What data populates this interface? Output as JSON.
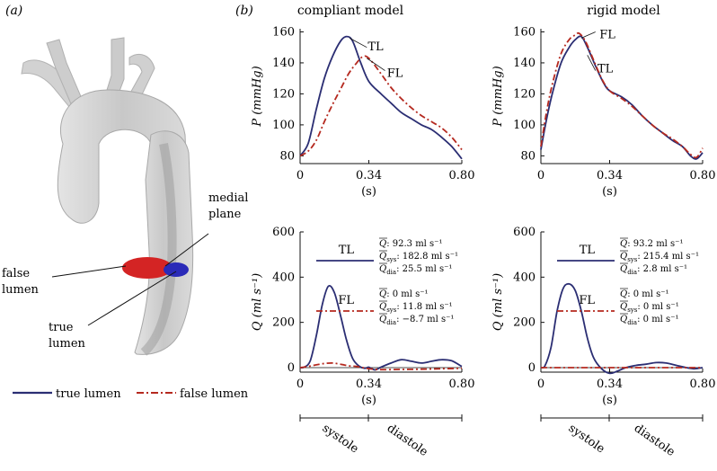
{
  "panels": {
    "a": "(a)",
    "b": "(b)"
  },
  "anatomy": {
    "labels": {
      "medial_plane": [
        "medial",
        "plane"
      ],
      "false_lumen": [
        "false",
        "lumen"
      ],
      "true_lumen": [
        "true",
        "lumen"
      ]
    },
    "colors": {
      "vessel": "#cfcfcf",
      "false_lumen": "#d42424",
      "true_lumen": "#2a2ab8"
    }
  },
  "legend": {
    "true_lumen": "true lumen",
    "false_lumen": "false lumen",
    "colors": {
      "true": "#2b2e73",
      "false": "#b5291f"
    }
  },
  "phase_labels": {
    "systole": "systole",
    "diastole": "diastole"
  },
  "chart_data": [
    {
      "type": "line",
      "title": "compliant model",
      "ylabel": "P (mmHg)",
      "xlabel": "(s)",
      "xlim": [
        0,
        0.8
      ],
      "ylim": [
        75,
        162
      ],
      "xticks": [
        "0",
        "0.34",
        "0.80"
      ],
      "yticks": [
        80,
        100,
        120,
        140,
        160
      ],
      "series": [
        {
          "name": "TL",
          "x": [
            0,
            0.04,
            0.08,
            0.12,
            0.16,
            0.2,
            0.23,
            0.26,
            0.3,
            0.34,
            0.4,
            0.45,
            0.5,
            0.55,
            0.6,
            0.65,
            0.7,
            0.75,
            0.8
          ],
          "values": [
            80,
            88,
            110,
            130,
            144,
            154,
            157,
            154,
            140,
            128,
            120,
            114,
            108,
            104,
            100,
            97,
            92,
            86,
            78
          ]
        },
        {
          "name": "FL",
          "x": [
            0,
            0.04,
            0.08,
            0.12,
            0.16,
            0.2,
            0.24,
            0.28,
            0.31,
            0.34,
            0.4,
            0.45,
            0.5,
            0.55,
            0.6,
            0.65,
            0.7,
            0.75,
            0.8
          ],
          "values": [
            80,
            83,
            90,
            102,
            113,
            123,
            133,
            140,
            144,
            143,
            133,
            124,
            117,
            111,
            106,
            102,
            98,
            92,
            84
          ]
        }
      ],
      "annotations": [
        "TL",
        "FL"
      ]
    },
    {
      "type": "line",
      "title": "rigid model",
      "ylabel": "P (mmHg)",
      "xlabel": "(s)",
      "xlim": [
        0,
        0.8
      ],
      "ylim": [
        75,
        162
      ],
      "xticks": [
        "0",
        "0.34",
        "0.80"
      ],
      "yticks": [
        80,
        100,
        120,
        140,
        160
      ],
      "series": [
        {
          "name": "TL",
          "x": [
            0,
            0.03,
            0.06,
            0.1,
            0.14,
            0.17,
            0.2,
            0.23,
            0.27,
            0.31,
            0.34,
            0.4,
            0.45,
            0.5,
            0.55,
            0.6,
            0.65,
            0.7,
            0.74,
            0.77,
            0.8
          ],
          "values": [
            84,
            105,
            122,
            140,
            150,
            155,
            157,
            150,
            138,
            127,
            122,
            118,
            113,
            106,
            100,
            95,
            90,
            86,
            80,
            78,
            82
          ]
        },
        {
          "name": "FL",
          "x": [
            0,
            0.03,
            0.06,
            0.1,
            0.14,
            0.17,
            0.19,
            0.22,
            0.26,
            0.3,
            0.34,
            0.4,
            0.45,
            0.5,
            0.55,
            0.6,
            0.65,
            0.7,
            0.74,
            0.77,
            0.8
          ],
          "values": [
            86,
            110,
            128,
            146,
            155,
            158,
            159,
            154,
            142,
            130,
            122,
            117,
            112,
            106,
            100,
            95,
            91,
            86,
            81,
            79,
            85
          ]
        }
      ],
      "annotations": [
        "TL",
        "FL"
      ]
    },
    {
      "type": "line",
      "ylabel": "Q (ml s⁻¹)",
      "xlabel": "(s)",
      "xlim": [
        0,
        0.8
      ],
      "ylim": [
        -20,
        600
      ],
      "xticks": [
        "0",
        "0.34",
        "0.80"
      ],
      "yticks": [
        0,
        200,
        400,
        600
      ],
      "series": [
        {
          "name": "TL",
          "x": [
            0,
            0.02,
            0.05,
            0.08,
            0.11,
            0.14,
            0.17,
            0.2,
            0.23,
            0.26,
            0.29,
            0.32,
            0.34,
            0.37,
            0.4,
            0.45,
            0.5,
            0.55,
            0.6,
            0.65,
            0.7,
            0.75,
            0.8
          ],
          "values": [
            0,
            2,
            30,
            140,
            280,
            360,
            330,
            230,
            120,
            40,
            8,
            -3,
            2,
            -10,
            2,
            20,
            35,
            28,
            20,
            28,
            35,
            30,
            5
          ]
        },
        {
          "name": "FL",
          "x": [
            0,
            0.04,
            0.08,
            0.12,
            0.16,
            0.2,
            0.24,
            0.28,
            0.32,
            0.34,
            0.4,
            0.5,
            0.6,
            0.7,
            0.8
          ],
          "values": [
            0,
            5,
            12,
            18,
            20,
            15,
            8,
            5,
            -2,
            -5,
            -9,
            -8,
            -7,
            -5,
            -3
          ]
        }
      ],
      "legend": {
        "TL": {
          "label": "TL",
          "mean": "92.3 ml s⁻¹",
          "sys": "182.8 ml s⁻¹",
          "dia": "25.5 ml s⁻¹"
        },
        "FL": {
          "label": "FL",
          "mean": "0 ml s⁻¹",
          "sys": "11.8 ml s⁻¹",
          "dia": "−8.7 ml s⁻¹"
        }
      }
    },
    {
      "type": "line",
      "ylabel": "Q (ml s⁻¹)",
      "xlabel": "(s)",
      "xlim": [
        0,
        0.8
      ],
      "ylim": [
        -20,
        600
      ],
      "xticks": [
        "0",
        "0.34",
        "0.80"
      ],
      "yticks": [
        0,
        200,
        400,
        600
      ],
      "series": [
        {
          "name": "TL",
          "x": [
            0,
            0.02,
            0.05,
            0.08,
            0.11,
            0.14,
            0.17,
            0.2,
            0.23,
            0.26,
            0.3,
            0.34,
            0.38,
            0.42,
            0.47,
            0.52,
            0.57,
            0.62,
            0.67,
            0.72,
            0.76,
            0.8
          ],
          "values": [
            0,
            8,
            90,
            250,
            350,
            370,
            340,
            250,
            130,
            45,
            -5,
            -25,
            -15,
            0,
            10,
            15,
            22,
            20,
            10,
            0,
            -5,
            0
          ]
        },
        {
          "name": "FL",
          "x": [
            0,
            0.2,
            0.4,
            0.6,
            0.8
          ],
          "values": [
            0,
            0,
            0,
            0,
            0
          ]
        }
      ],
      "legend": {
        "TL": {
          "label": "TL",
          "mean": "93.2 ml s⁻¹",
          "sys": "215.4 ml s⁻¹",
          "dia": "2.8 ml s⁻¹"
        },
        "FL": {
          "label": "FL",
          "mean": "0 ml s⁻¹",
          "sys": "0 ml s⁻¹",
          "dia": "0 ml s⁻¹"
        }
      }
    }
  ]
}
